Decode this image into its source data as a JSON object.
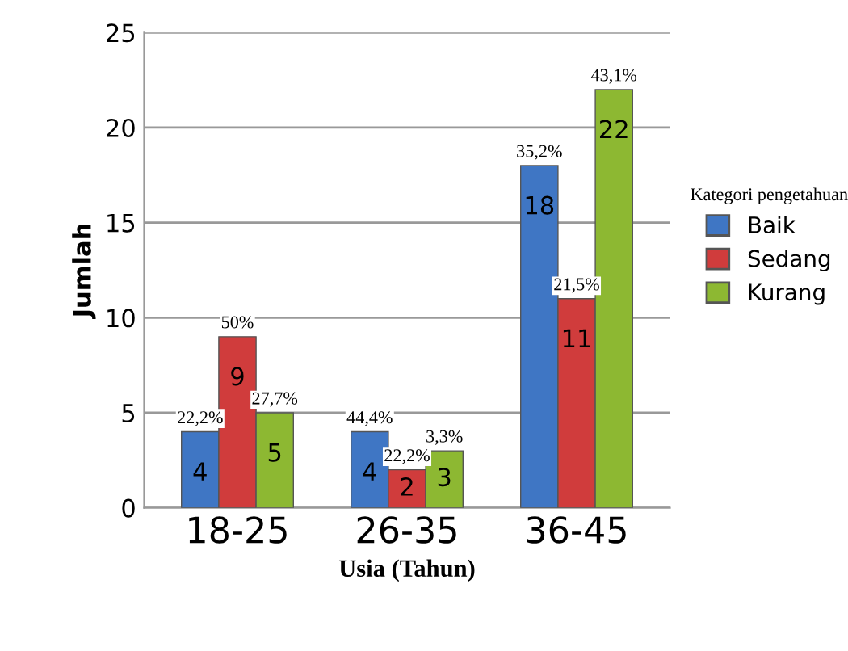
{
  "chart_data": {
    "type": "bar",
    "xlabel": "Usia (Tahun)",
    "ylabel": "Jumlah",
    "legend_title": "Kategori pengetahuan",
    "categories": [
      "18-25",
      "26-35",
      "36-45"
    ],
    "series": [
      {
        "name": "Baik",
        "color": "#3f76c4",
        "values": [
          4,
          4,
          18
        ]
      },
      {
        "name": "Sedang",
        "color": "#d03c3c",
        "values": [
          9,
          2,
          11
        ]
      },
      {
        "name": "Kurang",
        "color": "#8db832",
        "values": [
          5,
          3,
          22
        ]
      }
    ],
    "annotations": [
      "22,2%",
      "44,4%",
      "35,2%",
      "50%",
      "22,2%",
      "21,5%",
      "27,7%",
      "3,3%",
      "43,1%"
    ],
    "ylim": [
      0,
      25
    ],
    "yticks": [
      0,
      5,
      10,
      15,
      20,
      25
    ],
    "grid": "y",
    "legend": "right",
    "data_labels": true
  }
}
